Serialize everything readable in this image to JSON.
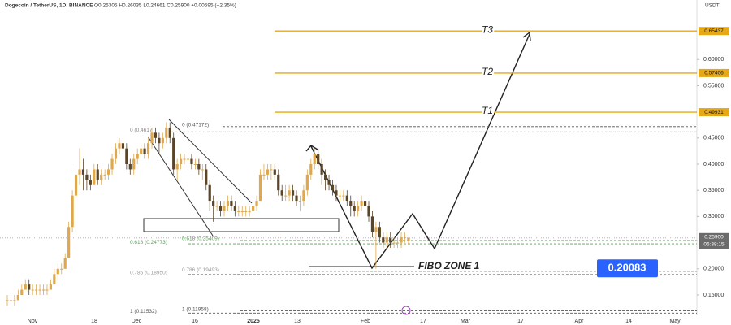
{
  "chart_data": {
    "type": "candlestick",
    "title": "Dogecoin / TetherUS, 1D, BINANCE",
    "ohlc_text": "O0.25305 H0.26035 L0.24661 C0.25900 +0.00595 (+2.35%)",
    "currency": "USDT",
    "xticks": [
      "Nov",
      "18",
      "Dec",
      "16",
      "2025",
      "13",
      "Feb",
      "17",
      "Mar",
      "17",
      "Apr",
      "14",
      "May"
    ],
    "ylim": [
      0.0925,
      0.7137
    ],
    "yticks": [
      {
        "value": 0.6,
        "label": "0.60000"
      },
      {
        "value": 0.55,
        "label": "0.55000"
      },
      {
        "value": 0.45,
        "label": "0.45000"
      },
      {
        "value": 0.4,
        "label": "0.40000"
      },
      {
        "value": 0.35,
        "label": "0.35000"
      },
      {
        "value": 0.3,
        "label": "0.30000"
      },
      {
        "value": 0.2,
        "label": "0.20000"
      },
      {
        "value": 0.15,
        "label": "0.15000"
      }
    ],
    "up_color": "#e0a84a",
    "down_color": "#5a4528",
    "candles": [
      [
        0.14,
        0.15,
        0.13,
        0.14
      ],
      [
        0.14,
        0.15,
        0.13,
        0.14
      ],
      [
        0.14,
        0.15,
        0.13,
        0.14
      ],
      [
        0.14,
        0.16,
        0.14,
        0.15
      ],
      [
        0.15,
        0.17,
        0.15,
        0.16
      ],
      [
        0.16,
        0.18,
        0.16,
        0.17
      ],
      [
        0.17,
        0.18,
        0.15,
        0.16
      ],
      [
        0.16,
        0.17,
        0.15,
        0.16
      ],
      [
        0.16,
        0.17,
        0.15,
        0.16
      ],
      [
        0.16,
        0.17,
        0.15,
        0.16
      ],
      [
        0.16,
        0.17,
        0.15,
        0.16
      ],
      [
        0.16,
        0.17,
        0.15,
        0.16
      ],
      [
        0.16,
        0.18,
        0.16,
        0.17
      ],
      [
        0.17,
        0.2,
        0.17,
        0.19
      ],
      [
        0.19,
        0.21,
        0.18,
        0.2
      ],
      [
        0.2,
        0.21,
        0.19,
        0.2
      ],
      [
        0.2,
        0.23,
        0.2,
        0.22
      ],
      [
        0.22,
        0.29,
        0.22,
        0.28
      ],
      [
        0.28,
        0.35,
        0.27,
        0.34
      ],
      [
        0.34,
        0.4,
        0.33,
        0.38
      ],
      [
        0.38,
        0.43,
        0.36,
        0.39
      ],
      [
        0.39,
        0.41,
        0.35,
        0.38
      ],
      [
        0.38,
        0.39,
        0.35,
        0.37
      ],
      [
        0.37,
        0.38,
        0.35,
        0.36
      ],
      [
        0.36,
        0.4,
        0.36,
        0.39
      ],
      [
        0.39,
        0.4,
        0.36,
        0.37
      ],
      [
        0.37,
        0.39,
        0.36,
        0.38
      ],
      [
        0.38,
        0.39,
        0.37,
        0.38
      ],
      [
        0.38,
        0.4,
        0.37,
        0.39
      ],
      [
        0.39,
        0.42,
        0.38,
        0.41
      ],
      [
        0.41,
        0.44,
        0.4,
        0.43
      ],
      [
        0.43,
        0.45,
        0.42,
        0.44
      ],
      [
        0.44,
        0.45,
        0.42,
        0.43
      ],
      [
        0.43,
        0.44,
        0.39,
        0.4
      ],
      [
        0.4,
        0.41,
        0.38,
        0.39
      ],
      [
        0.39,
        0.42,
        0.38,
        0.41
      ],
      [
        0.41,
        0.43,
        0.4,
        0.42
      ],
      [
        0.42,
        0.44,
        0.41,
        0.43
      ],
      [
        0.43,
        0.44,
        0.41,
        0.42
      ],
      [
        0.42,
        0.45,
        0.41,
        0.44
      ],
      [
        0.44,
        0.47,
        0.43,
        0.46
      ],
      [
        0.46,
        0.47,
        0.44,
        0.45
      ],
      [
        0.45,
        0.46,
        0.42,
        0.44
      ],
      [
        0.44,
        0.46,
        0.43,
        0.45
      ],
      [
        0.45,
        0.48,
        0.44,
        0.47
      ],
      [
        0.47,
        0.48,
        0.44,
        0.45
      ],
      [
        0.45,
        0.46,
        0.38,
        0.39
      ],
      [
        0.39,
        0.41,
        0.37,
        0.4
      ],
      [
        0.4,
        0.42,
        0.39,
        0.41
      ],
      [
        0.41,
        0.42,
        0.4,
        0.41
      ],
      [
        0.41,
        0.42,
        0.39,
        0.41
      ],
      [
        0.41,
        0.42,
        0.39,
        0.4
      ],
      [
        0.4,
        0.41,
        0.39,
        0.4
      ],
      [
        0.4,
        0.41,
        0.38,
        0.39
      ],
      [
        0.39,
        0.4,
        0.37,
        0.39
      ],
      [
        0.39,
        0.4,
        0.35,
        0.36
      ],
      [
        0.36,
        0.37,
        0.31,
        0.33
      ],
      [
        0.33,
        0.34,
        0.29,
        0.32
      ],
      [
        0.32,
        0.33,
        0.31,
        0.32
      ],
      [
        0.32,
        0.33,
        0.3,
        0.31
      ],
      [
        0.31,
        0.33,
        0.3,
        0.32
      ],
      [
        0.32,
        0.34,
        0.31,
        0.33
      ],
      [
        0.33,
        0.34,
        0.31,
        0.32
      ],
      [
        0.32,
        0.33,
        0.3,
        0.31
      ],
      [
        0.31,
        0.32,
        0.3,
        0.31
      ],
      [
        0.31,
        0.32,
        0.3,
        0.31
      ],
      [
        0.31,
        0.32,
        0.3,
        0.31
      ],
      [
        0.31,
        0.32,
        0.3,
        0.31
      ],
      [
        0.31,
        0.33,
        0.31,
        0.32
      ],
      [
        0.32,
        0.34,
        0.31,
        0.33
      ],
      [
        0.33,
        0.39,
        0.33,
        0.38
      ],
      [
        0.38,
        0.4,
        0.37,
        0.38
      ],
      [
        0.38,
        0.4,
        0.37,
        0.39
      ],
      [
        0.39,
        0.4,
        0.37,
        0.39
      ],
      [
        0.39,
        0.4,
        0.37,
        0.38
      ],
      [
        0.38,
        0.39,
        0.34,
        0.35
      ],
      [
        0.35,
        0.36,
        0.33,
        0.34
      ],
      [
        0.34,
        0.36,
        0.33,
        0.34
      ],
      [
        0.34,
        0.36,
        0.33,
        0.35
      ],
      [
        0.35,
        0.36,
        0.33,
        0.34
      ],
      [
        0.34,
        0.35,
        0.32,
        0.33
      ],
      [
        0.33,
        0.34,
        0.31,
        0.33
      ],
      [
        0.33,
        0.36,
        0.32,
        0.35
      ],
      [
        0.35,
        0.39,
        0.34,
        0.38
      ],
      [
        0.38,
        0.41,
        0.37,
        0.4
      ],
      [
        0.4,
        0.43,
        0.39,
        0.42
      ],
      [
        0.42,
        0.43,
        0.39,
        0.4
      ],
      [
        0.4,
        0.41,
        0.36,
        0.38
      ],
      [
        0.38,
        0.39,
        0.35,
        0.37
      ],
      [
        0.37,
        0.38,
        0.35,
        0.36
      ],
      [
        0.36,
        0.37,
        0.34,
        0.35
      ],
      [
        0.35,
        0.36,
        0.33,
        0.34
      ],
      [
        0.34,
        0.35,
        0.33,
        0.34
      ],
      [
        0.34,
        0.35,
        0.33,
        0.34
      ],
      [
        0.34,
        0.35,
        0.32,
        0.33
      ],
      [
        0.33,
        0.34,
        0.3,
        0.32
      ],
      [
        0.32,
        0.33,
        0.3,
        0.31
      ],
      [
        0.31,
        0.33,
        0.3,
        0.32
      ],
      [
        0.32,
        0.34,
        0.31,
        0.33
      ],
      [
        0.33,
        0.34,
        0.31,
        0.32
      ],
      [
        0.32,
        0.33,
        0.29,
        0.3
      ],
      [
        0.3,
        0.31,
        0.26,
        0.27
      ],
      [
        0.27,
        0.29,
        0.2,
        0.28
      ],
      [
        0.28,
        0.29,
        0.25,
        0.26
      ],
      [
        0.26,
        0.27,
        0.24,
        0.25
      ],
      [
        0.25,
        0.27,
        0.24,
        0.26
      ],
      [
        0.26,
        0.27,
        0.24,
        0.25
      ],
      [
        0.25,
        0.26,
        0.24,
        0.25
      ],
      [
        0.25,
        0.26,
        0.24,
        0.25
      ],
      [
        0.25,
        0.27,
        0.24,
        0.26
      ],
      [
        0.26,
        0.27,
        0.25,
        0.26
      ],
      [
        0.25305,
        0.26035,
        0.24661,
        0.259
      ]
    ],
    "targets": [
      {
        "name": "T3",
        "value": 0.65437
      },
      {
        "name": "T2",
        "value": 0.57406
      },
      {
        "name": "T1",
        "value": 0.49931
      }
    ],
    "target_color": "#e6a817",
    "last_price": {
      "value": 0.259,
      "label": "0.25900"
    },
    "countdown": "06:38:15",
    "fib_levels": [
      {
        "label": "0 (0.4617",
        "value": 0.4617,
        "color": "#888888"
      },
      {
        "label": "0.618 (0.24773)",
        "value": 0.24773,
        "color": "#5aa05a"
      },
      {
        "label": "0.786 (0.18950)",
        "value": 0.1895,
        "color": "#999999"
      },
      {
        "label": "1 (0.11532)",
        "value": 0.11532,
        "color": "#555555"
      },
      {
        "label": "0 (0.47172)",
        "value": 0.47172,
        "color": "#555555"
      },
      {
        "label": "0.618 (0.25409)",
        "value": 0.25409,
        "color": "#5aa05a"
      },
      {
        "label": "0.786 (0.19493)",
        "value": 0.19493,
        "color": "#999999"
      },
      {
        "label": "1 (0.11958)",
        "value": 0.11958,
        "color": "#555555"
      }
    ],
    "annotation": {
      "text": "FIBO ZONE 1",
      "value": 0.20083,
      "color": "#2962ff"
    }
  }
}
